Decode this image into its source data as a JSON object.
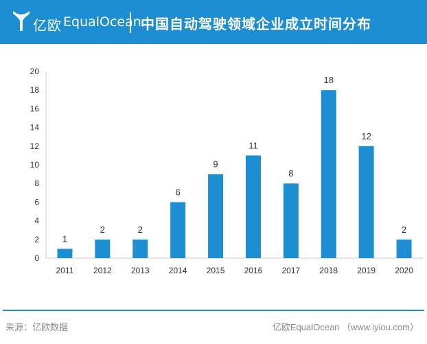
{
  "header": {
    "logo_cn": "亿欧",
    "logo_en": "EqualOcean",
    "title": "中国自动驾驶领域企业成立时间分布",
    "background_color": "#1e8ed3"
  },
  "footer": {
    "source": "来源：亿欧数据",
    "credit": "亿欧EqualOcean （www.iyiou.com）",
    "line_color": "#1e8ed3"
  },
  "chart_data": {
    "type": "bar",
    "categories": [
      "2011",
      "2012",
      "2013",
      "2014",
      "2015",
      "2016",
      "2017",
      "2018",
      "2019",
      "2020"
    ],
    "values": [
      1,
      2,
      2,
      6,
      9,
      11,
      8,
      18,
      12,
      2
    ],
    "ylim": [
      0,
      20
    ],
    "yticks": [
      0,
      2,
      4,
      6,
      8,
      10,
      12,
      14,
      16,
      18,
      20
    ],
    "grid": false,
    "legend": "none",
    "data_labels": true,
    "bar_color": "#1e8ed3"
  }
}
